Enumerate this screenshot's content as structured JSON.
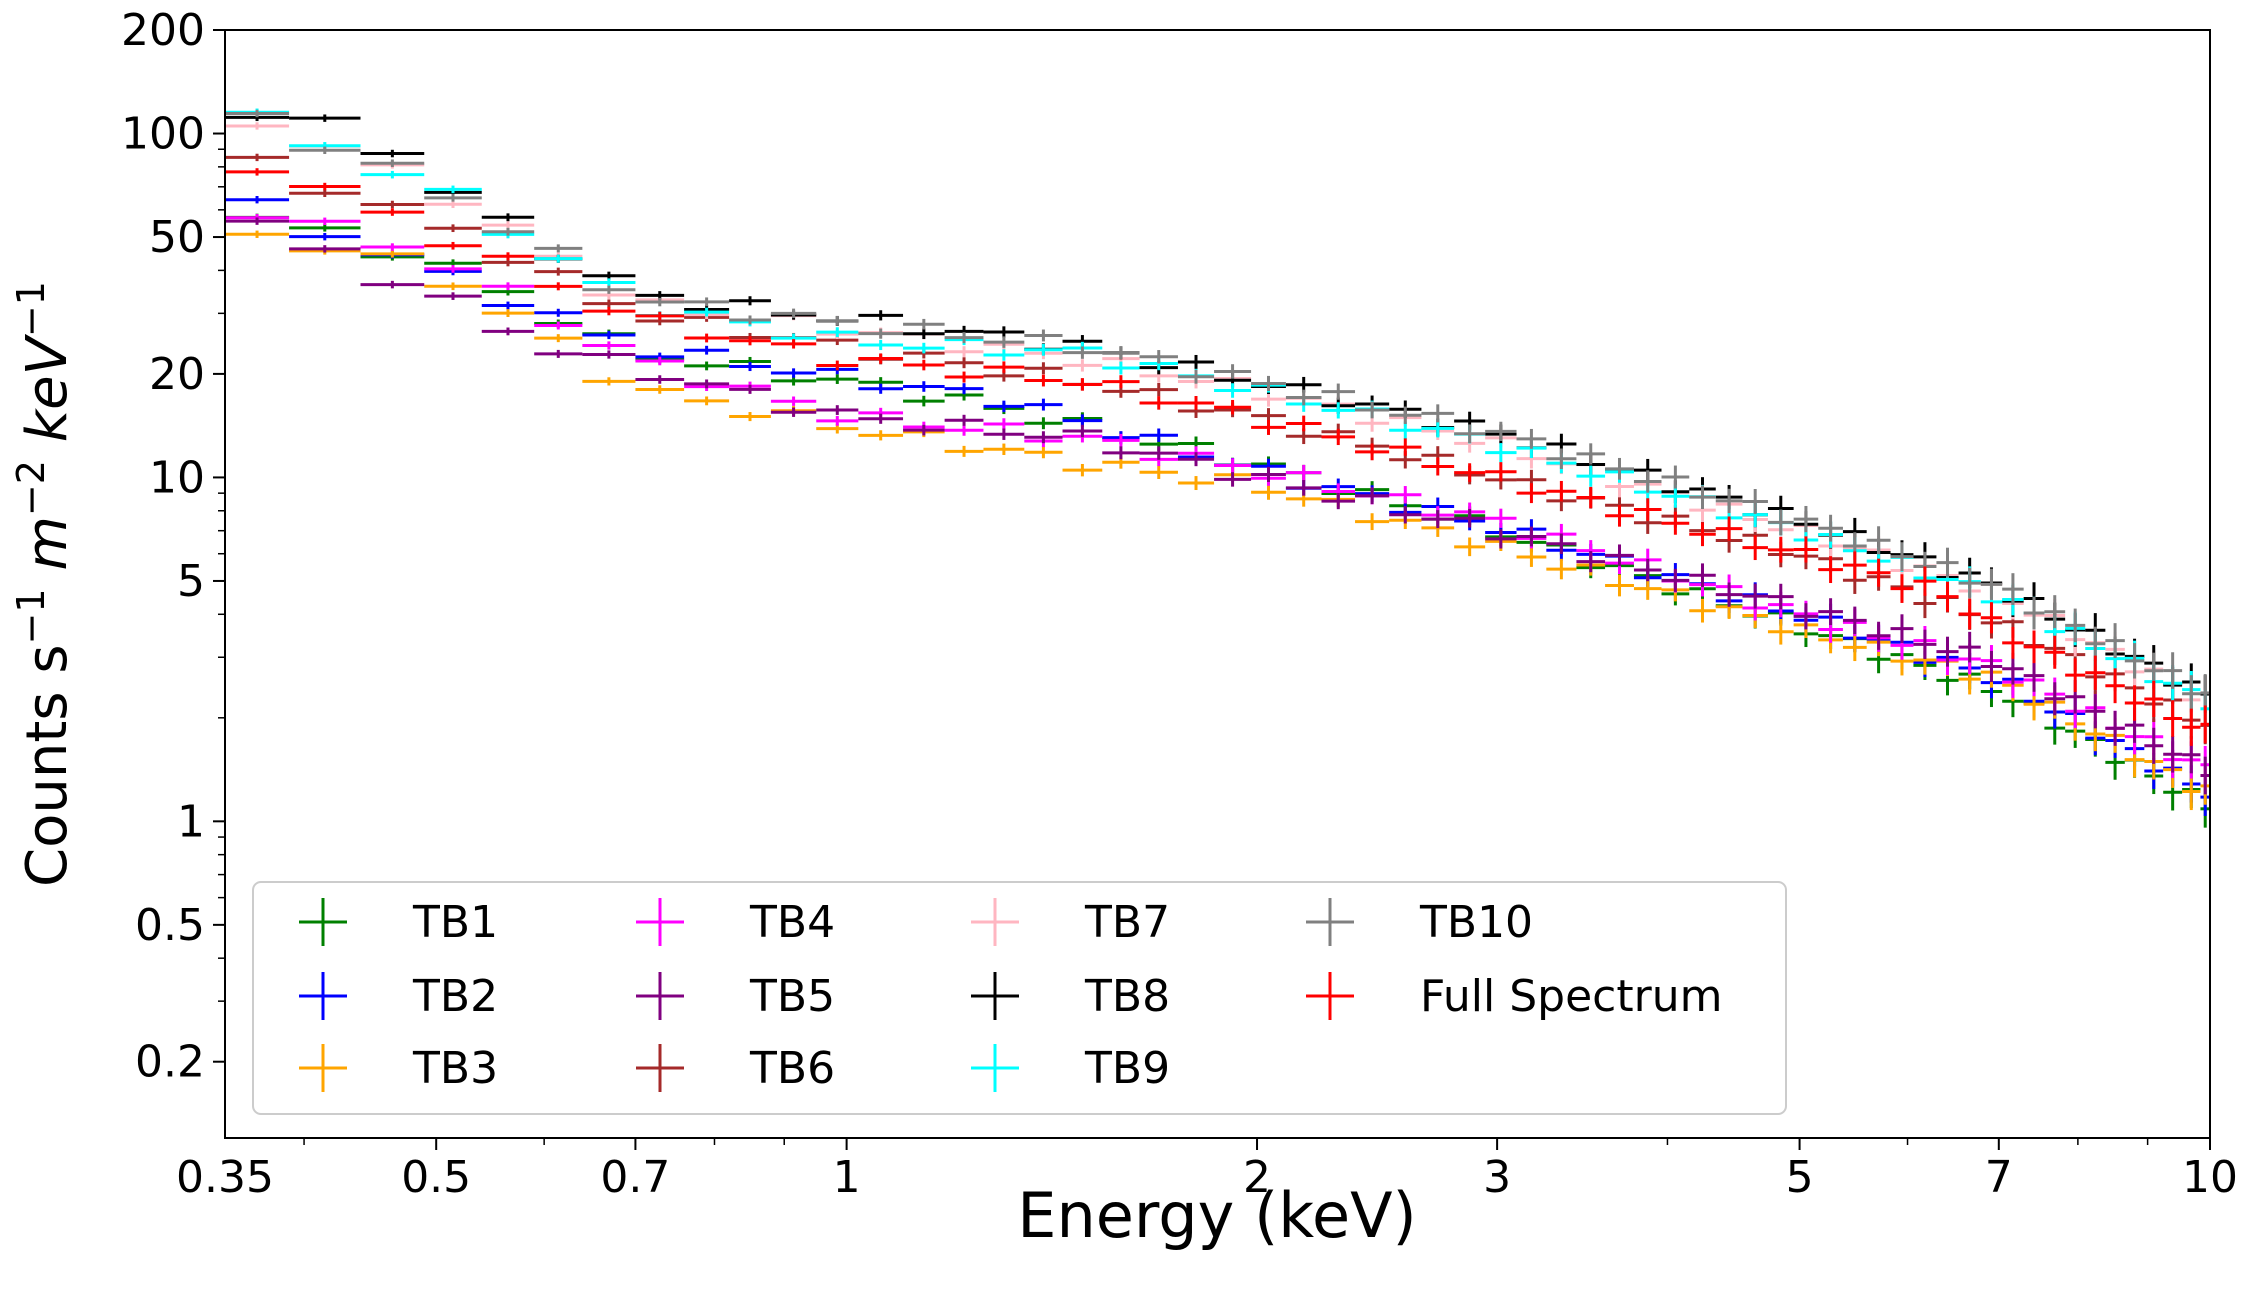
{
  "chart_data": {
    "type": "scatter",
    "title": "",
    "xlabel": "Energy (keV)",
    "ylabel": {
      "text": "Counts s",
      "sup1": "−1",
      "mid": " m",
      "sup2": "−2",
      "end": " keV",
      "sup3": "−1"
    },
    "xscale": "log",
    "yscale": "log",
    "xlim": [
      0.35,
      10
    ],
    "ylim": [
      0.12,
      200
    ],
    "xticks": [
      {
        "value": 0.35,
        "label": "0.35"
      },
      {
        "value": 0.5,
        "label": "0.5"
      },
      {
        "value": 0.7,
        "label": "0.7"
      },
      {
        "value": 1,
        "label": "1"
      },
      {
        "value": 2,
        "label": "2"
      },
      {
        "value": 3,
        "label": "3"
      },
      {
        "value": 5,
        "label": "5"
      },
      {
        "value": 7,
        "label": "7"
      },
      {
        "value": 10,
        "label": "10"
      }
    ],
    "yticks": [
      {
        "value": 200,
        "label": "200"
      },
      {
        "value": 100,
        "label": "100"
      },
      {
        "value": 50,
        "label": "50"
      },
      {
        "value": 20,
        "label": "20"
      },
      {
        "value": 10,
        "label": "10"
      },
      {
        "value": 5,
        "label": "5"
      },
      {
        "value": 1,
        "label": "1"
      },
      {
        "value": 0.5,
        "label": "0.5"
      },
      {
        "value": 0.2,
        "label": "0.2"
      }
    ],
    "legend_position": "lower-left",
    "legend_columns": 4,
    "series": [
      {
        "name": "TB1",
        "color": "#008000",
        "anchors": [
          [
            0.35,
            60
          ],
          [
            0.5,
            43
          ],
          [
            0.7,
            23
          ],
          [
            1,
            19
          ],
          [
            1.2,
            17
          ],
          [
            2,
            11
          ],
          [
            3,
            7
          ],
          [
            5,
            3.7
          ],
          [
            7,
            2.4
          ],
          [
            10,
            1.1
          ]
        ]
      },
      {
        "name": "TB2",
        "color": "#0000ff",
        "anchors": [
          [
            0.35,
            66
          ],
          [
            0.5,
            40
          ],
          [
            0.7,
            24
          ],
          [
            1,
            19.5
          ],
          [
            1.3,
            17
          ],
          [
            2,
            10.5
          ],
          [
            3,
            7.2
          ],
          [
            5,
            4.0
          ],
          [
            7,
            2.6
          ],
          [
            10,
            1.2
          ]
        ]
      },
      {
        "name": "TB3",
        "color": "#ffa500",
        "anchors": [
          [
            0.35,
            54
          ],
          [
            0.5,
            40
          ],
          [
            0.7,
            18
          ],
          [
            1,
            14
          ],
          [
            1.5,
            11
          ],
          [
            2,
            9.5
          ],
          [
            3,
            6.3
          ],
          [
            5,
            3.6
          ],
          [
            7,
            2.6
          ],
          [
            10,
            1.2
          ]
        ]
      },
      {
        "name": "TB4",
        "color": "#ff00ff",
        "anchors": [
          [
            0.35,
            63
          ],
          [
            0.5,
            44
          ],
          [
            0.7,
            22
          ],
          [
            1,
            15
          ],
          [
            1.5,
            13
          ],
          [
            2,
            10.5
          ],
          [
            3,
            7.5
          ],
          [
            5,
            4.0
          ],
          [
            7,
            2.8
          ],
          [
            10,
            1.4
          ]
        ]
      },
      {
        "name": "TB5",
        "color": "#800080",
        "anchors": [
          [
            0.35,
            59
          ],
          [
            0.5,
            34
          ],
          [
            0.6,
            24
          ],
          [
            1,
            15
          ],
          [
            1.5,
            13
          ],
          [
            2,
            10
          ],
          [
            3,
            7.0
          ],
          [
            5,
            4.2
          ],
          [
            7,
            2.9
          ],
          [
            10,
            1.4
          ]
        ]
      },
      {
        "name": "TB6",
        "color": "#a52a2a",
        "anchors": [
          [
            0.35,
            88
          ],
          [
            0.5,
            55
          ],
          [
            0.7,
            30
          ],
          [
            1,
            24
          ],
          [
            1.5,
            19
          ],
          [
            2,
            15
          ],
          [
            3,
            10
          ],
          [
            5,
            6.0
          ],
          [
            7,
            3.8
          ],
          [
            10,
            1.9
          ]
        ]
      },
      {
        "name": "TB7",
        "color": "#ffb6c1",
        "anchors": [
          [
            0.35,
            118
          ],
          [
            0.5,
            70
          ],
          [
            0.7,
            32
          ],
          [
            1,
            27
          ],
          [
            1.5,
            22
          ],
          [
            2,
            18
          ],
          [
            3,
            12.5
          ],
          [
            5,
            7.0
          ],
          [
            7,
            4.6
          ],
          [
            10,
            2.2
          ]
        ]
      },
      {
        "name": "TB8",
        "color": "#000000",
        "anchors": [
          [
            0.35,
            120
          ],
          [
            0.4,
            108
          ],
          [
            0.45,
            100
          ],
          [
            0.5,
            72
          ],
          [
            0.7,
            34
          ],
          [
            1,
            29
          ],
          [
            1.5,
            24
          ],
          [
            2,
            19
          ],
          [
            3,
            13.5
          ],
          [
            5,
            7.5
          ],
          [
            7,
            4.8
          ],
          [
            10,
            2.3
          ]
        ]
      },
      {
        "name": "TB9",
        "color": "#00ffff",
        "anchors": [
          [
            0.35,
            120
          ],
          [
            0.5,
            70
          ],
          [
            0.7,
            32
          ],
          [
            1,
            25
          ],
          [
            1.5,
            23
          ],
          [
            2,
            18
          ],
          [
            3,
            12.5
          ],
          [
            5,
            7.0
          ],
          [
            7,
            4.5
          ],
          [
            10,
            2.2
          ]
        ]
      },
      {
        "name": "TB10",
        "color": "#808080",
        "anchors": [
          [
            0.35,
            122
          ],
          [
            0.5,
            70
          ],
          [
            0.7,
            33
          ],
          [
            1,
            28
          ],
          [
            1.5,
            24
          ],
          [
            2,
            19
          ],
          [
            3,
            13.5
          ],
          [
            5,
            7.5
          ],
          [
            7,
            4.8
          ],
          [
            10,
            2.3
          ]
        ]
      },
      {
        "name": "Full Spectrum",
        "color": "#ff0000",
        "anchors": [
          [
            0.35,
            88
          ],
          [
            0.5,
            52
          ],
          [
            0.7,
            29
          ],
          [
            1,
            22
          ],
          [
            1.5,
            19
          ],
          [
            2,
            15
          ],
          [
            3,
            10
          ],
          [
            5,
            6.0
          ],
          [
            6.4,
            4.6
          ],
          [
            7,
            3.6
          ],
          [
            10,
            1.8
          ]
        ]
      }
    ],
    "bin_edges_keV": [
      0.35,
      0.39,
      0.44,
      0.49,
      0.54,
      0.59,
      0.64,
      0.7,
      0.76,
      0.82,
      0.88,
      0.95,
      1.02,
      1.1,
      1.18,
      1.26,
      1.35,
      1.44,
      1.54,
      1.64,
      1.75,
      1.86,
      1.98,
      2.1,
      2.23,
      2.36,
      2.5,
      2.64,
      2.79,
      2.94,
      3.1,
      3.26,
      3.43,
      3.6,
      3.78,
      3.96,
      4.15,
      4.34,
      4.54,
      4.74,
      4.95,
      5.16,
      5.38,
      5.6,
      5.83,
      6.06,
      6.3,
      6.54,
      6.79,
      7.04,
      7.3,
      7.56,
      7.83,
      8.1,
      8.38,
      8.66,
      8.95,
      9.24,
      9.54,
      9.84,
      10.0
    ]
  }
}
